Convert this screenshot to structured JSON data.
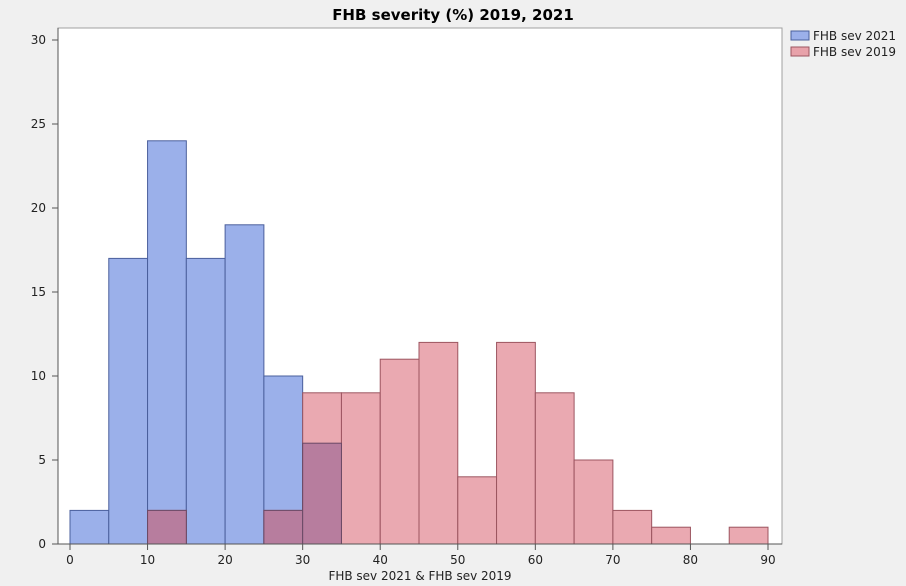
{
  "chart_data": {
    "type": "bar",
    "title": "FHB severity (%) 2019, 2021",
    "xlabel": "FHB sev 2021 & FHB sev 2019",
    "ylabel": "",
    "xlim": [
      0,
      90
    ],
    "ylim": [
      0,
      30
    ],
    "x_ticks": [
      0,
      10,
      20,
      30,
      40,
      50,
      60,
      70,
      80,
      90
    ],
    "y_ticks": [
      0,
      5,
      10,
      15,
      20,
      25,
      30
    ],
    "bin_width": 5,
    "grid": false,
    "legend_position": "top-right",
    "series": [
      {
        "name": "FHB sev 2021",
        "color": "#9bb0ea",
        "bin_starts": [
          0,
          5,
          10,
          15,
          20,
          25,
          30
        ],
        "values": [
          2,
          17,
          24,
          17,
          19,
          10,
          6
        ]
      },
      {
        "name": "FHB sev 2019",
        "color": "#e8a2aa",
        "bin_starts": [
          10,
          25,
          30,
          35,
          40,
          45,
          50,
          55,
          60,
          65,
          70,
          75,
          85
        ],
        "values": [
          2,
          2,
          9,
          9,
          11,
          12,
          4,
          12,
          9,
          5,
          2,
          1,
          1
        ]
      }
    ],
    "overlap_color": "#b77d9e"
  }
}
